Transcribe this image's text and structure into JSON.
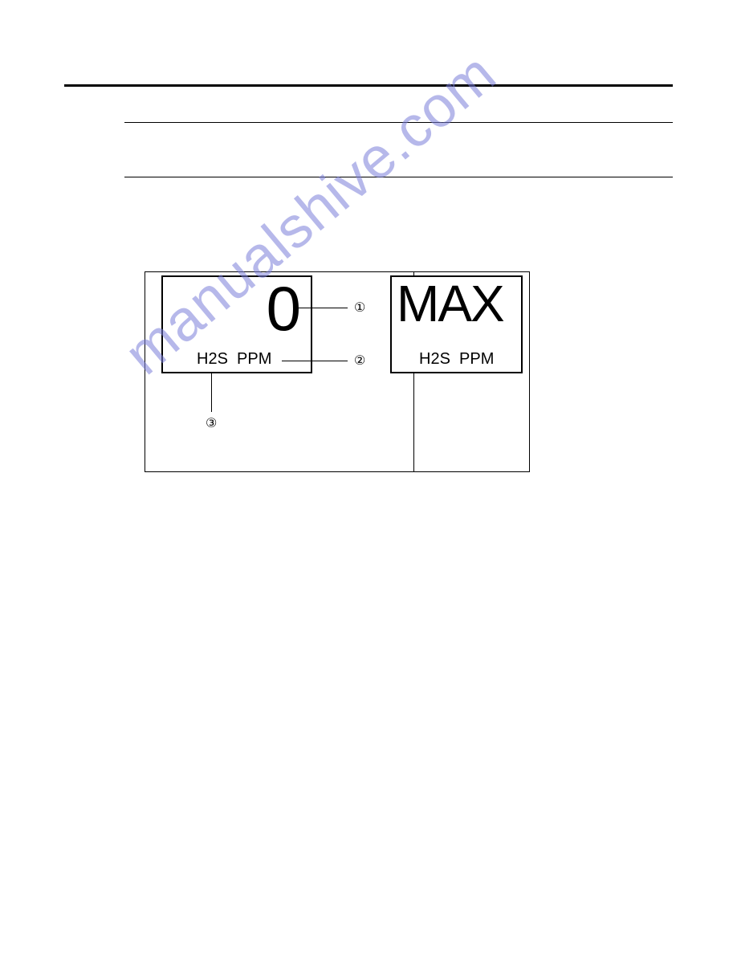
{
  "lcd": {
    "left": {
      "value": "0",
      "gas": "H2S",
      "unit": "PPM"
    },
    "right": {
      "value": "MAX",
      "gas": "H2S",
      "unit": "PPM"
    }
  },
  "callouts": {
    "c1": "①",
    "c2": "②",
    "c3": "③"
  },
  "watermark": "manualshive.com",
  "colors": {
    "watermark": "#7b7fd9",
    "line": "#000000",
    "background": "#ffffff"
  }
}
